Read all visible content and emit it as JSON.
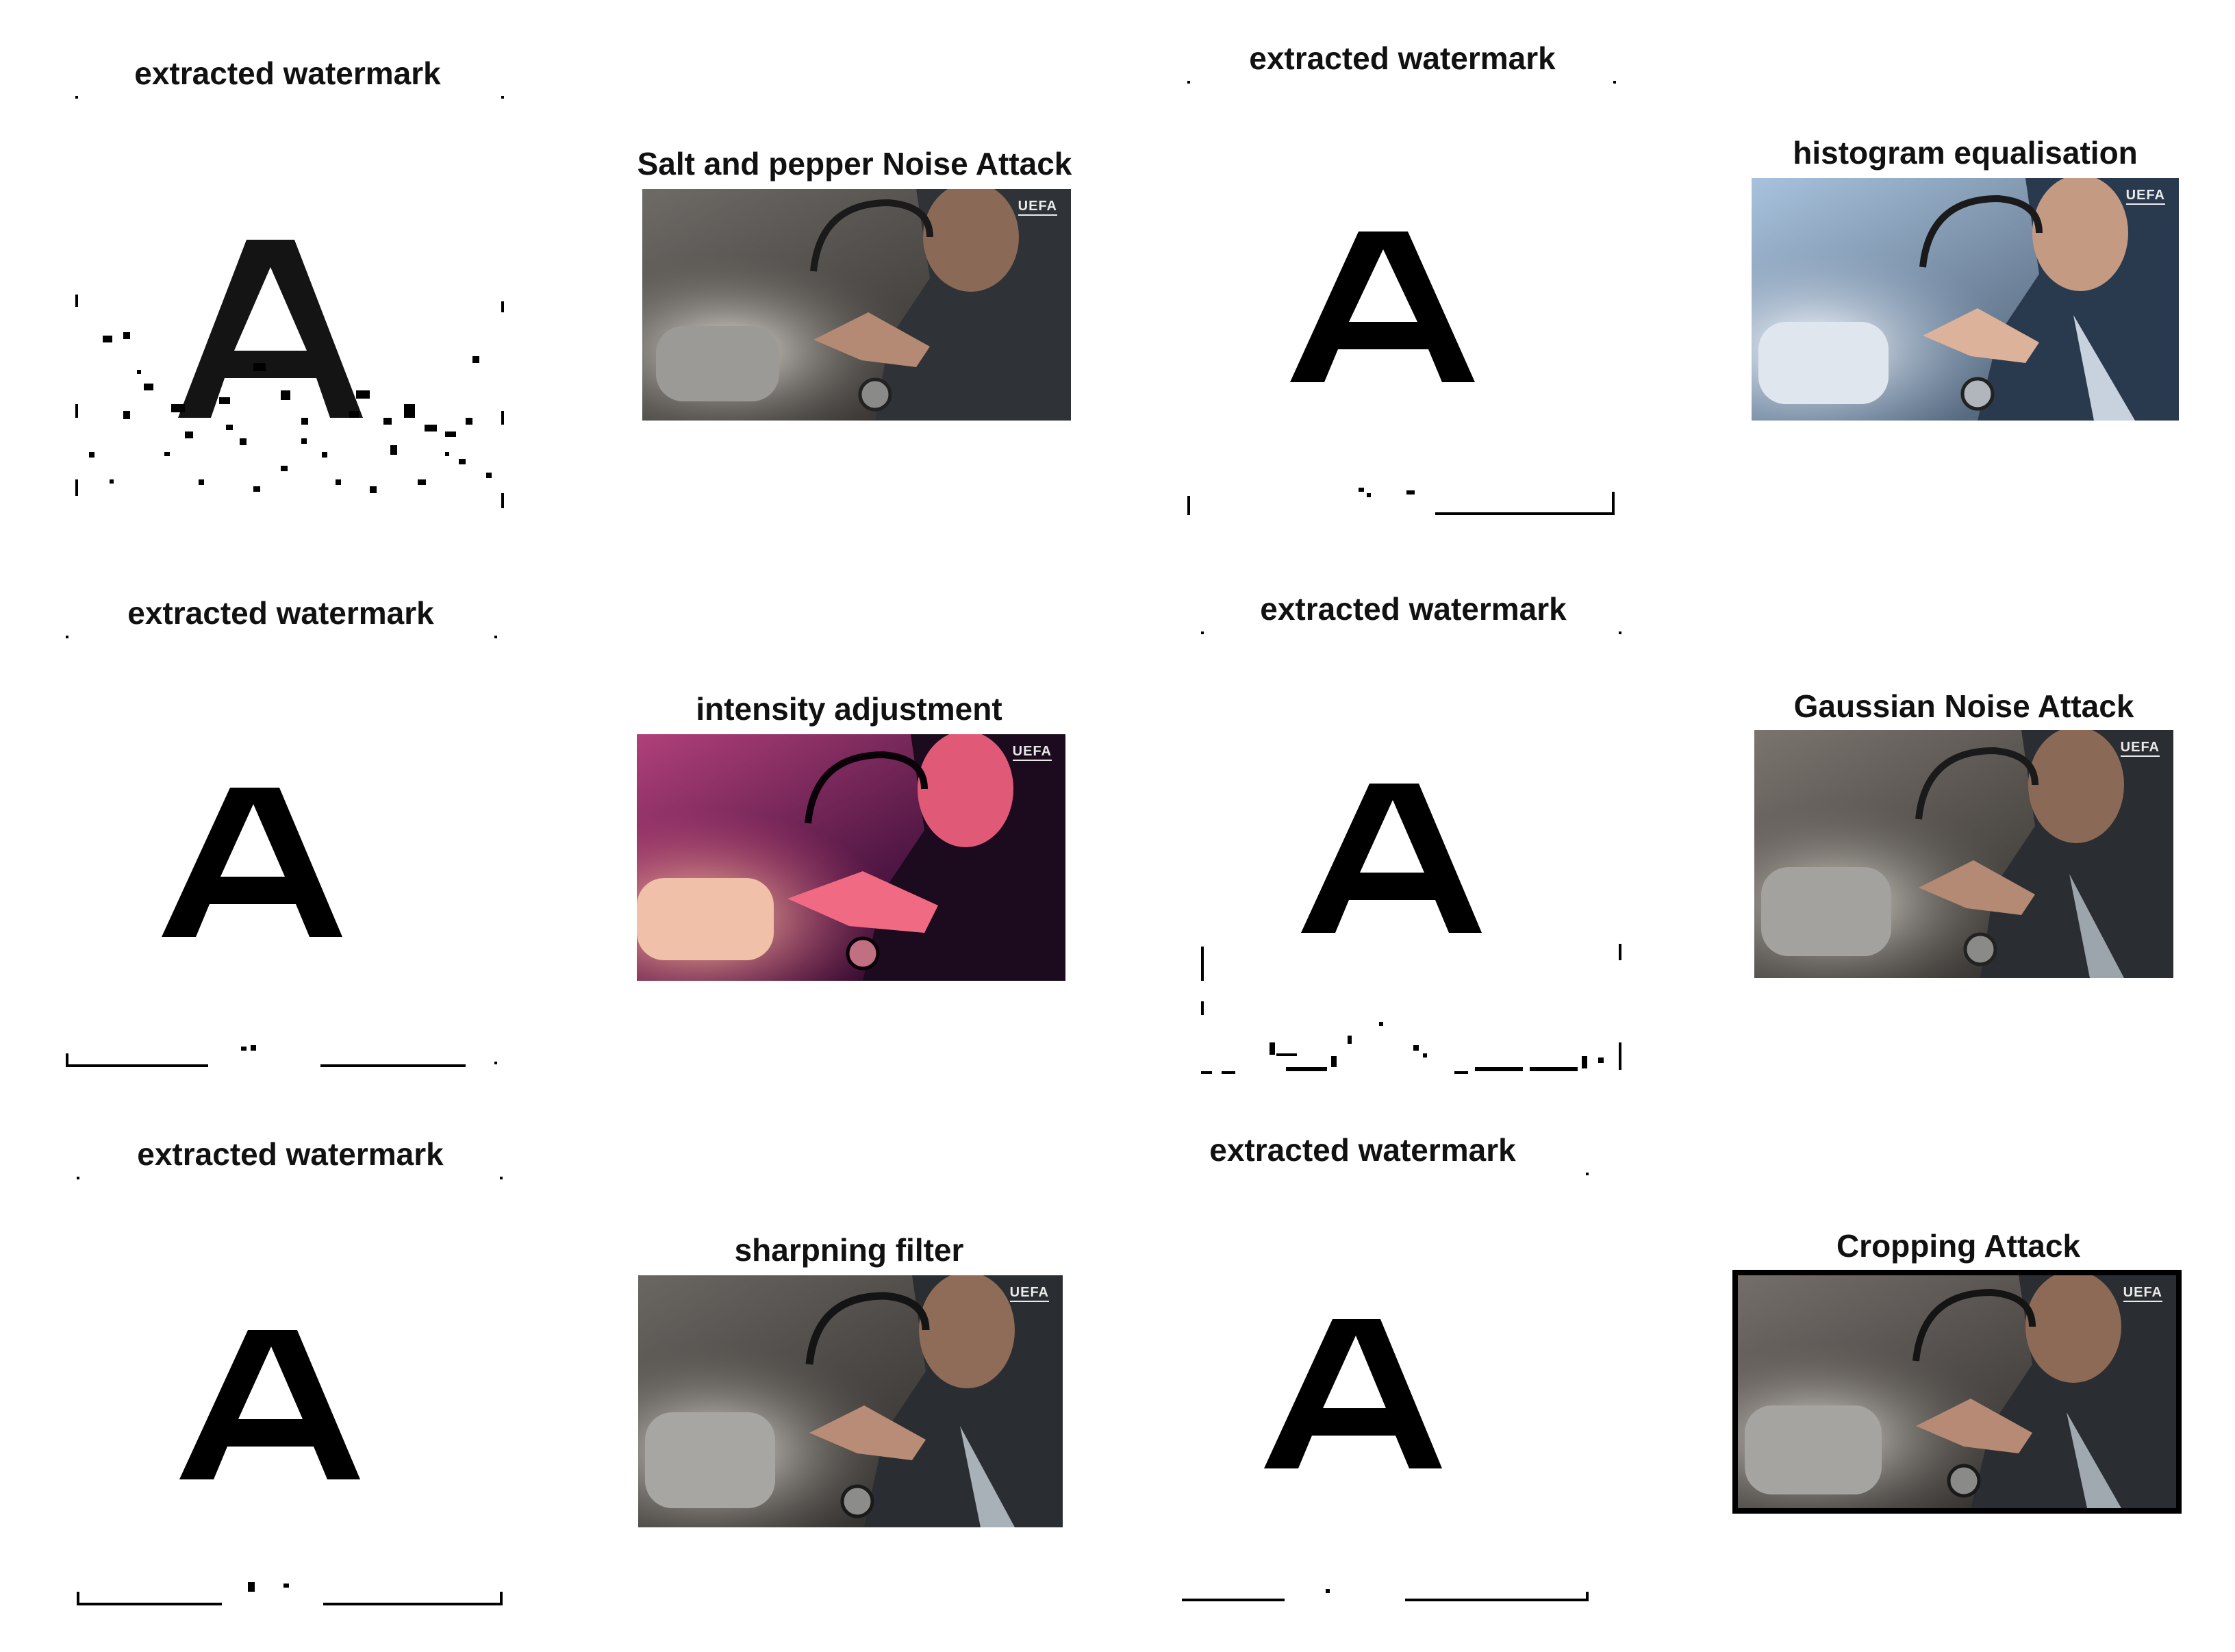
{
  "figure": {
    "panels": [
      {
        "id": "p1",
        "watermark_title": "extracted watermark",
        "attack_title": "Salt and pepper Noise Attack",
        "badge": "UEFA",
        "filter": "noise"
      },
      {
        "id": "p2",
        "watermark_title": "extracted watermark",
        "attack_title": "histogram equalisation",
        "badge": "UEFA",
        "filter": "histeq"
      },
      {
        "id": "p3",
        "watermark_title": "extracted watermark",
        "attack_title": "intensity adjustment",
        "badge": "UEFA",
        "filter": "intensity"
      },
      {
        "id": "p4",
        "watermark_title": "extracted watermark",
        "attack_title": "Gaussian Noise Attack",
        "badge": "UEFA",
        "filter": "gauss"
      },
      {
        "id": "p5",
        "watermark_title": "extracted watermark",
        "attack_title": "sharpning filter",
        "badge": "UEFA",
        "filter": "sharp"
      },
      {
        "id": "p6",
        "watermark_title": "extracted watermark",
        "attack_title": "Cropping Attack",
        "badge": "UEFA",
        "filter": "crop"
      }
    ],
    "watermark_glyph": "A",
    "colors": {
      "ink": "#000000",
      "background": "#ffffff",
      "photo_dark": "#2c2a28",
      "intensity_magenta": "#a0306a",
      "histeq_blue": "#6f8db0"
    }
  }
}
